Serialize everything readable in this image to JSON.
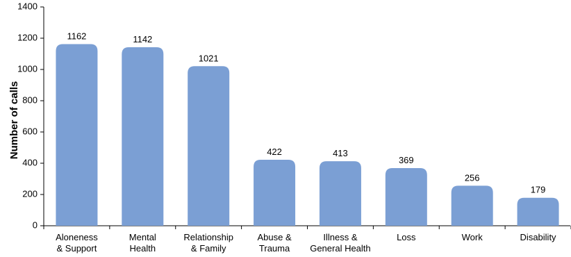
{
  "chart_data": {
    "type": "bar",
    "title": "",
    "xlabel": "",
    "ylabel": "Number of calls",
    "ylim": [
      0,
      1400
    ],
    "yticks": [
      0,
      200,
      400,
      600,
      800,
      1000,
      1200,
      1400
    ],
    "categories": [
      [
        "Aloneness",
        "& Support"
      ],
      [
        "Mental",
        "Health"
      ],
      [
        "Relationship",
        "& Family"
      ],
      [
        "Abuse &",
        "Trauma"
      ],
      [
        "Illness &",
        "General Health"
      ],
      [
        "Loss"
      ],
      [
        "Work"
      ],
      [
        "Disability"
      ]
    ],
    "values": [
      1162,
      1142,
      1021,
      422,
      413,
      369,
      256,
      179
    ],
    "bar_color": "#7b9fd4",
    "grid": false,
    "legend": "none"
  }
}
